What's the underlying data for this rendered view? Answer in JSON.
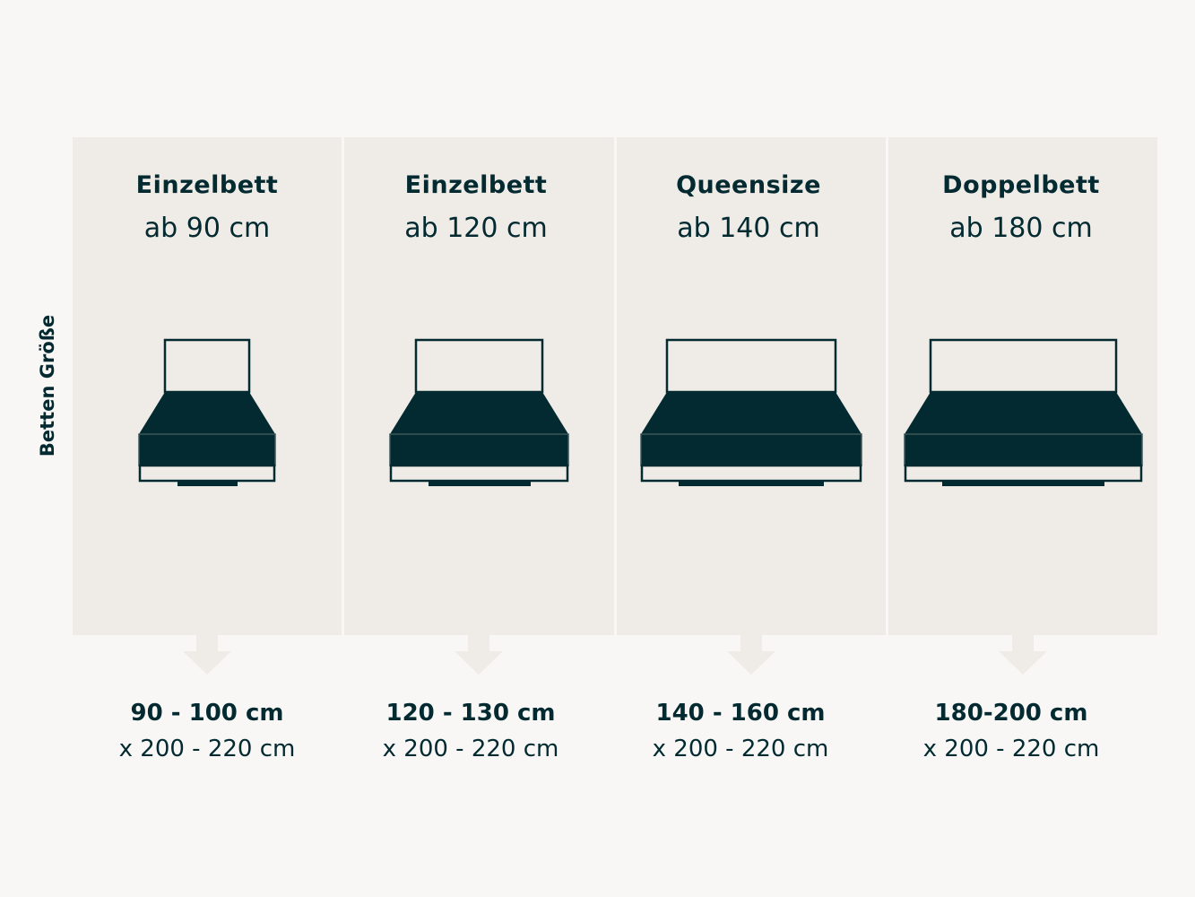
{
  "side_label": "Betten Größe",
  "colors": {
    "background": "#f8f7f5",
    "panel": "#efebe6",
    "dark": "#022a30"
  },
  "columns": [
    {
      "title": "Einzelbett",
      "subtitle": "ab 90 cm",
      "range": "90 - 100 cm",
      "length": "x 200 - 220 cm",
      "icon": "single-bed-icon"
    },
    {
      "title": "Einzelbett",
      "subtitle": "ab 120 cm",
      "range": "120 - 130 cm",
      "length": "x 200 - 220 cm",
      "icon": "wide-single-bed-icon"
    },
    {
      "title": "Queensize",
      "subtitle": "ab 140 cm",
      "range": "140 - 160 cm",
      "length": "x 200 - 220 cm",
      "icon": "queen-bed-icon"
    },
    {
      "title": "Doppelbett",
      "subtitle": "ab 180 cm",
      "range": "180-200 cm",
      "length": "x 200 - 220 cm",
      "icon": "double-bed-icon"
    }
  ]
}
